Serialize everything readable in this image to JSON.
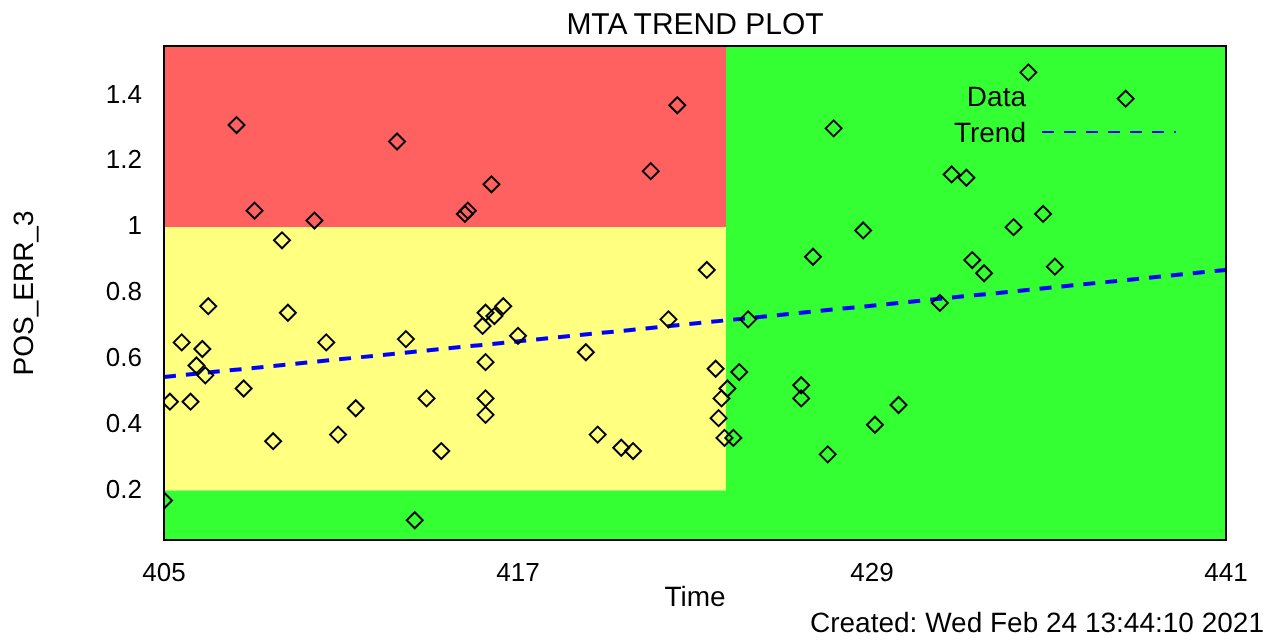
{
  "chart_data": {
    "type": "scatter",
    "title": "MTA TREND PLOT",
    "xlabel": "Time",
    "ylabel": "POS_ERR_3",
    "annotations": [
      "Created: Wed Feb 24 13:44:10 2021"
    ],
    "xlim": [
      405,
      441
    ],
    "xticks": [
      405,
      417,
      429,
      441
    ],
    "ylim": [
      0.05,
      1.55
    ],
    "yticks": [
      0.2,
      0.4,
      0.6,
      0.8,
      1.0,
      1.2,
      1.4
    ],
    "legend": "top right",
    "bands": [
      {
        "axis": "y",
        "from": 1.0,
        "to": 1.55,
        "color": "#ff6060"
      },
      {
        "axis": "y",
        "from": 0.2,
        "to": 1.0,
        "color": "#ffff80"
      },
      {
        "axis": "y",
        "from": 0.05,
        "to": 0.2,
        "color": "#33ff33"
      },
      {
        "axis": "x",
        "from": 424.05,
        "to": 441,
        "color": "#33ff33"
      }
    ],
    "series": [
      {
        "name": "Data",
        "type": "scatter",
        "color": "#000000",
        "marker": "diamond",
        "x": [
          407.46,
          412.9,
          408.07,
          410.1,
          409.0,
          406.5,
          409.2,
          405.6,
          406.3,
          410.5,
          413.2,
          406.1,
          406.4,
          407.7,
          405.2,
          405.9,
          411.5,
          413.9,
          408.7,
          410.9,
          414.4,
          405.0,
          413.5,
          422.4,
          421.5,
          416.1,
          415.2,
          415.3,
          423.4,
          416.5,
          415.9,
          416.2,
          415.8,
          417.0,
          422.1,
          419.3,
          415.9,
          415.9,
          415.9,
          423.7,
          423.9,
          423.8,
          424.0,
          419.7,
          420.5,
          420.9,
          424.5,
          424.1,
          424.3,
          427.7,
          431.7,
          432.2,
          428.7,
          427.0,
          432.4,
          432.8,
          424.8,
          431.3,
          426.6,
          426.6,
          429.9,
          429.1,
          427.5,
          434.3,
          437.6,
          433.8,
          434.8,
          435.2
        ],
        "values": [
          1.31,
          1.26,
          1.05,
          1.02,
          0.96,
          0.76,
          0.74,
          0.65,
          0.63,
          0.65,
          0.66,
          0.58,
          0.55,
          0.51,
          0.47,
          0.47,
          0.45,
          0.48,
          0.35,
          0.37,
          0.32,
          0.17,
          0.11,
          1.37,
          1.17,
          1.13,
          1.04,
          1.05,
          0.87,
          0.76,
          0.74,
          0.73,
          0.7,
          0.67,
          0.72,
          0.62,
          0.59,
          0.48,
          0.43,
          0.57,
          0.48,
          0.42,
          0.36,
          0.37,
          0.33,
          0.32,
          0.56,
          0.51,
          0.36,
          1.3,
          1.16,
          1.15,
          0.99,
          0.91,
          0.9,
          0.86,
          0.72,
          0.77,
          0.52,
          0.48,
          0.46,
          0.4,
          0.31,
          1.47,
          1.39,
          1.0,
          1.04,
          0.88
        ]
      },
      {
        "name": "Trend",
        "type": "line",
        "color": "#0000ff",
        "marker": "none",
        "line_style": "dashed",
        "x": [
          405,
          441
        ],
        "values": [
          0.545,
          0.87
        ]
      }
    ]
  }
}
